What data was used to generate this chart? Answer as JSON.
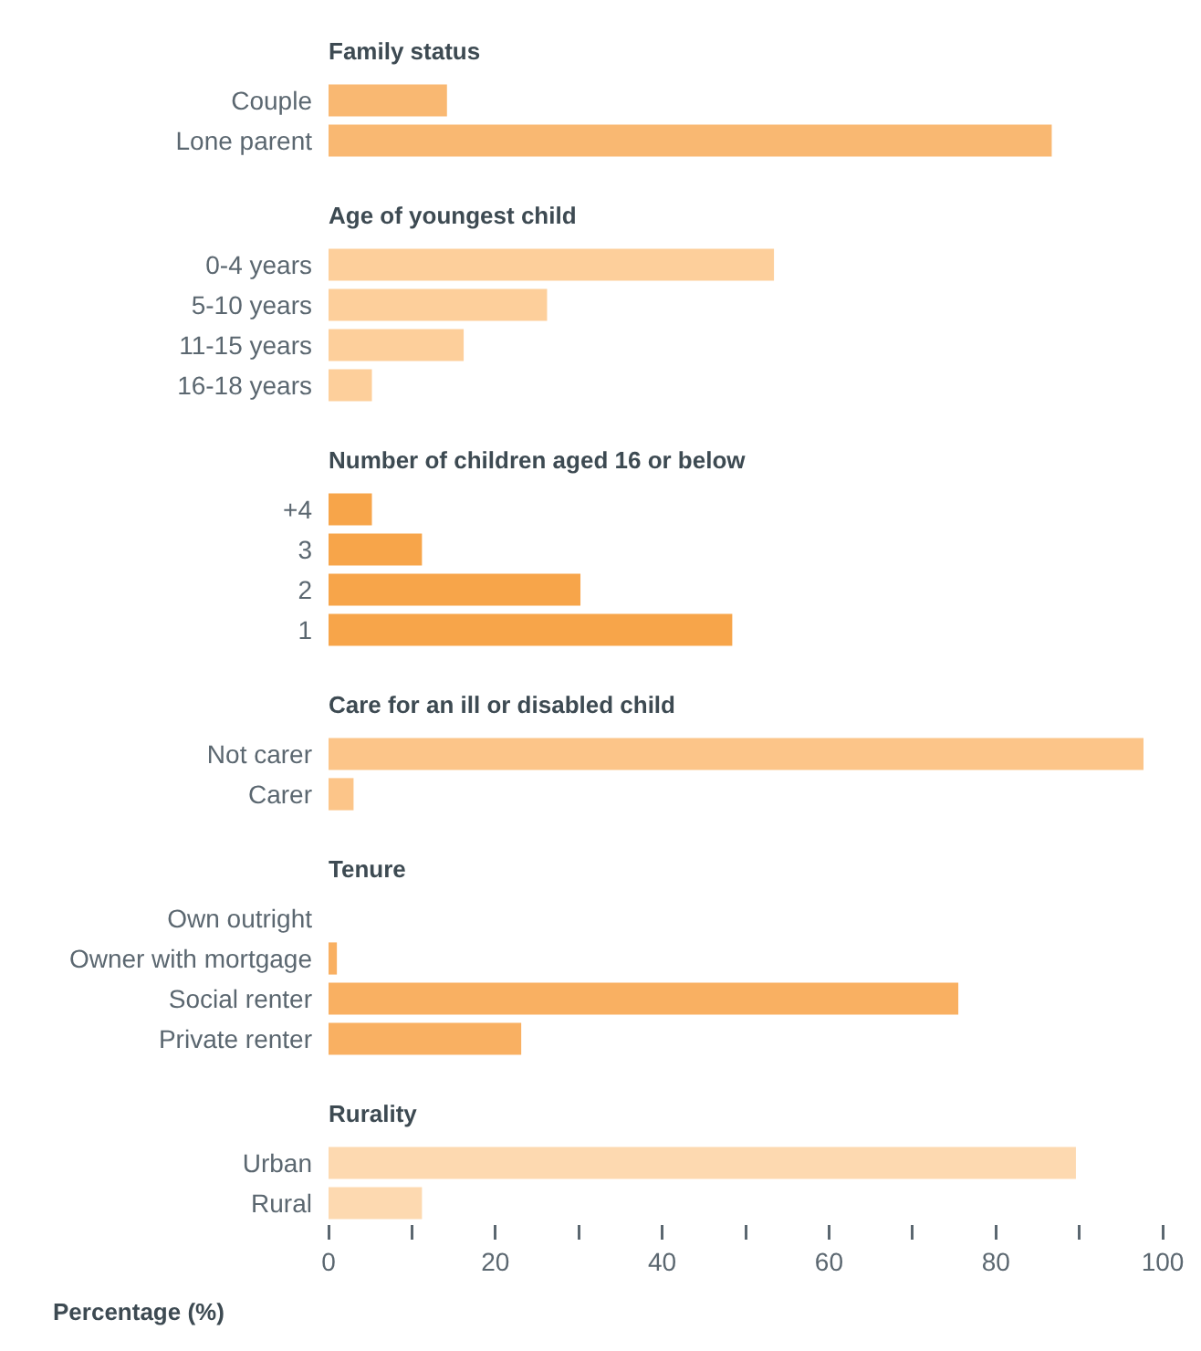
{
  "chart_data": [
    {
      "type": "bar",
      "orientation": "horizontal",
      "title": "Family status",
      "categories": [
        "Couple",
        "Lone parent"
      ],
      "values": [
        14.2,
        86.7
      ],
      "color": "#f9b872",
      "xlim": [
        0,
        100
      ],
      "grid": false,
      "tick_labels": "y"
    },
    {
      "type": "bar",
      "orientation": "horizontal",
      "title": "Age of youngest child",
      "categories": [
        "0-4 years",
        "5-10 years",
        "11-15 years",
        "16-18 years"
      ],
      "values": [
        53.4,
        26.2,
        16.2,
        5.2
      ],
      "color": "#fdcf9b",
      "xlim": [
        0,
        100
      ],
      "grid": false,
      "tick_labels": "y"
    },
    {
      "type": "bar",
      "orientation": "horizontal",
      "title": "Number of children aged 16 or below",
      "categories": [
        "+4",
        "3",
        "2",
        "1"
      ],
      "values": [
        5.2,
        11.2,
        30.2,
        48.4
      ],
      "color": "#f7a54a",
      "xlim": [
        0,
        100
      ],
      "grid": false,
      "tick_labels": "y"
    },
    {
      "type": "bar",
      "orientation": "horizontal",
      "title": "Care for an ill or disabled child",
      "categories": [
        "Not carer",
        "Carer"
      ],
      "values": [
        97.7,
        3.0
      ],
      "color": "#fcc589",
      "xlim": [
        0,
        100
      ],
      "grid": false,
      "tick_labels": "y"
    },
    {
      "type": "bar",
      "orientation": "horizontal",
      "title": "Tenure",
      "categories": [
        "Own outright",
        "Owner with mortgage",
        "Social renter",
        "Private renter"
      ],
      "values": [
        0,
        1.0,
        75.5,
        23.1
      ],
      "color": "#f9b062",
      "xlim": [
        0,
        100
      ],
      "grid": false,
      "tick_labels": "y"
    },
    {
      "type": "bar",
      "orientation": "horizontal",
      "title": "Rurality",
      "xlabel": "Percentage (%)",
      "categories": [
        "Urban",
        "Rural"
      ],
      "values": [
        89.6,
        11.2
      ],
      "color": "#fdd9b0",
      "xlim": [
        0,
        100
      ],
      "xticks": [
        0,
        {
          "value": 10,
          "label": null
        },
        20,
        {
          "value": 30,
          "label": null
        },
        40,
        {
          "value": 50,
          "label": null
        },
        60,
        {
          "value": 70,
          "label": null
        },
        80,
        {
          "value": 90,
          "label": null
        },
        100
      ],
      "grid": false
    }
  ]
}
